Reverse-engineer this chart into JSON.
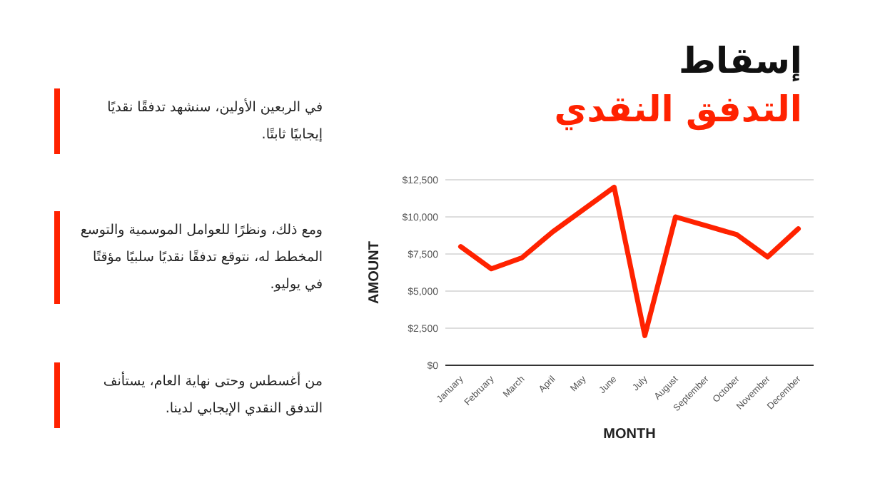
{
  "chart_data": {
    "type": "line",
    "title": "إسقاط",
    "subtitle": "التدفق النقدي",
    "xlabel": "MONTH",
    "ylabel": "AMOUNT",
    "categories": [
      "January",
      "February",
      "March",
      "April",
      "May",
      "June",
      "July",
      "August",
      "September",
      "October",
      "November",
      "December"
    ],
    "series": [
      {
        "color": "#ff2200",
        "values": [
          8000,
          6500,
          7250,
          9000,
          10500,
          12000,
          2000,
          10000,
          9400,
          8800,
          7300,
          9200
        ]
      }
    ],
    "ylim": [
      0,
      12500
    ],
    "yticks": [
      {
        "value": 0,
        "label": "$0"
      },
      {
        "value": 2500,
        "label": "$2,500"
      },
      {
        "value": 5000,
        "label": "$5,000"
      },
      {
        "value": 7500,
        "label": "$7,500"
      },
      {
        "value": 10000,
        "label": "$10,000"
      },
      {
        "value": 12500,
        "label": "$12,500"
      }
    ],
    "grid": "y",
    "annotations": [
      "في الربعين الأولين، سنشهد تدفقًا نقديًا إيجابيًا ثابتًا.",
      "ومع ذلك، ونظرًا للعوامل الموسمية والتوسع المخطط له، نتوقع تدفقًا نقديًا سلبيًا مؤقتًا في يوليو.",
      "من أغسطس وحتى نهاية العام، يستأنف التدفق النقدي الإيجابي لدينا."
    ]
  }
}
